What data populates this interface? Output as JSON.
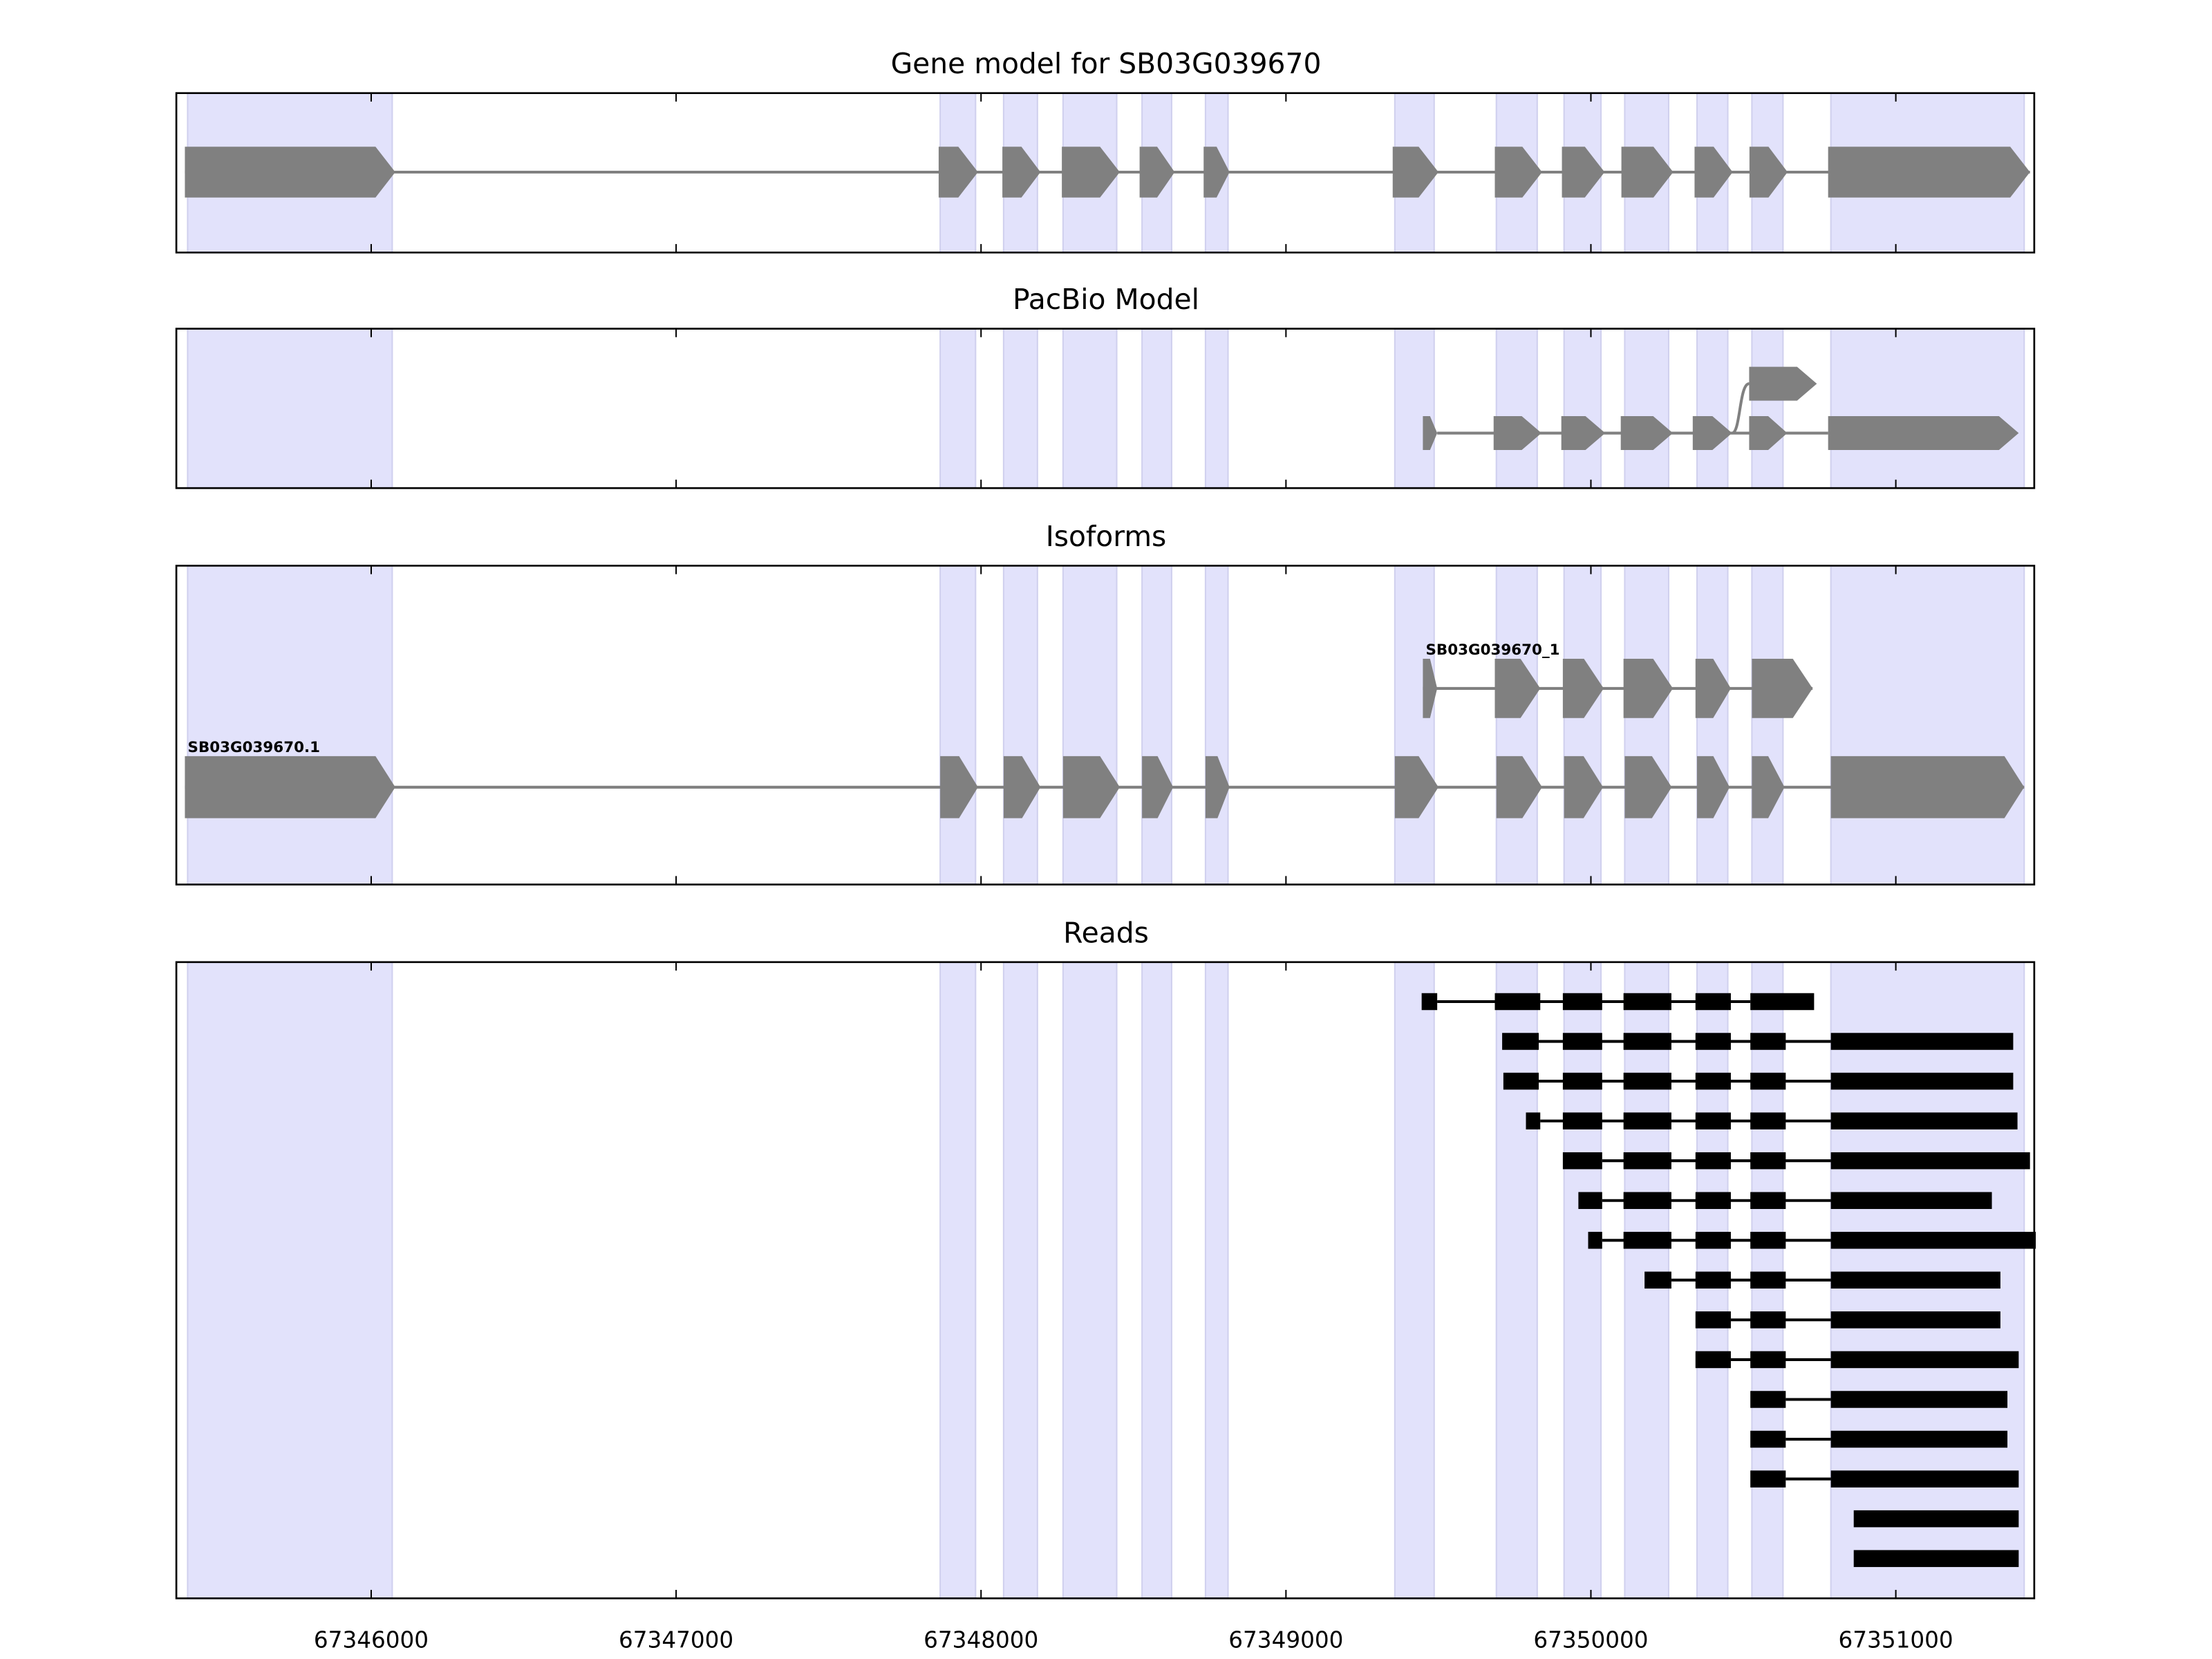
{
  "chart_data": {
    "type": "gene-track",
    "xlim": [
      67345361,
      67351454
    ],
    "x_ticks": [
      67346000,
      67347000,
      67348000,
      67349000,
      67350000,
      67351000
    ],
    "x_tick_labels": [
      "67346000",
      "67347000",
      "67348000",
      "67349000",
      "67350000",
      "67351000"
    ],
    "colors": {
      "shade": "#e2e2fb",
      "shade_edge": "#d0d0ee",
      "exon": "#808080",
      "read": "#000000"
    },
    "shaded_regions": [
      [
        67345398,
        67346069
      ],
      [
        67347866,
        67347982
      ],
      [
        67348074,
        67348185
      ],
      [
        67348269,
        67348445
      ],
      [
        67348528,
        67348625
      ],
      [
        67348736,
        67348810
      ],
      [
        67349357,
        67349486
      ],
      [
        67349690,
        67349824
      ],
      [
        67349912,
        67350033
      ],
      [
        67350111,
        67350255
      ],
      [
        67350348,
        67350449
      ],
      [
        67350528,
        67350630
      ],
      [
        67350787,
        67351421
      ]
    ],
    "gene_model": {
      "title": "Gene model for SB03G039670",
      "exons": [
        [
          67345389,
          67346079
        ],
        [
          67347861,
          67347990
        ],
        [
          67348070,
          67348195
        ],
        [
          67348265,
          67348455
        ],
        [
          67348520,
          67348635
        ],
        [
          67348730,
          67348815
        ],
        [
          67349350,
          67349500
        ],
        [
          67349685,
          67349840
        ],
        [
          67349905,
          67350045
        ],
        [
          67350100,
          67350270
        ],
        [
          67350340,
          67350465
        ],
        [
          67350520,
          67350645
        ],
        [
          67350778,
          67351440
        ]
      ]
    },
    "pacbio": {
      "title": "PacBio Model",
      "main_exons": [
        [
          67349449,
          67349496
        ],
        [
          67349681,
          67349838
        ],
        [
          67349903,
          67350047
        ],
        [
          67350098,
          67350269
        ],
        [
          67350334,
          67350463
        ],
        [
          67350519,
          67350644
        ],
        [
          67350778,
          67351403
        ]
      ],
      "branch_after_exon": 4,
      "branch_exons": [
        [
          67350519,
          67350741
        ]
      ]
    },
    "isoforms": {
      "title": "Isoforms",
      "items": [
        {
          "name": "SB03G039670_1",
          "row": 0,
          "exons": [
            [
              67349449,
              67349496
            ],
            [
              67349685,
              67349834
            ],
            [
              67349908,
              67350042
            ],
            [
              67350107,
              67350269
            ],
            [
              67350343,
              67350459
            ],
            [
              67350528,
              67350727
            ]
          ]
        },
        {
          "name": "SB03G039670.1",
          "row": 1,
          "exons": [
            [
              67345389,
              67346079
            ],
            [
              67347866,
              67347990
            ],
            [
              67348074,
              67348195
            ],
            [
              67348269,
              67348455
            ],
            [
              67348528,
              67348630
            ],
            [
              67348736,
              67348815
            ],
            [
              67349357,
              67349500
            ],
            [
              67349690,
              67349840
            ],
            [
              67349912,
              67350040
            ],
            [
              67350111,
              67350265
            ],
            [
              67350348,
              67350455
            ],
            [
              67350528,
              67350635
            ],
            [
              67350787,
              67351421
            ]
          ]
        }
      ]
    },
    "reads": {
      "title": "Reads",
      "items": [
        [
          [
            67349445,
            67349496
          ],
          [
            67349685,
            67349834
          ],
          [
            67349908,
            67350037
          ],
          [
            67350107,
            67350264
          ],
          [
            67350343,
            67350459
          ],
          [
            67350523,
            67350732
          ]
        ],
        [
          [
            67349709,
            67349829
          ],
          [
            67349908,
            67350037
          ],
          [
            67350107,
            67350264
          ],
          [
            67350343,
            67350459
          ],
          [
            67350523,
            67350639
          ],
          [
            67350787,
            67351385
          ]
        ],
        [
          [
            67349713,
            67349829
          ],
          [
            67349908,
            67350037
          ],
          [
            67350107,
            67350264
          ],
          [
            67350343,
            67350459
          ],
          [
            67350523,
            67350639
          ],
          [
            67350787,
            67351385
          ]
        ],
        [
          [
            67349787,
            67349834
          ],
          [
            67349908,
            67350037
          ],
          [
            67350107,
            67350264
          ],
          [
            67350343,
            67350459
          ],
          [
            67350523,
            67350639
          ],
          [
            67350787,
            67351399
          ]
        ],
        [
          [
            67349908,
            67350037
          ],
          [
            67350107,
            67350264
          ],
          [
            67350343,
            67350459
          ],
          [
            67350523,
            67350639
          ],
          [
            67350787,
            67351440
          ]
        ],
        [
          [
            67349959,
            67350037
          ],
          [
            67350107,
            67350264
          ],
          [
            67350343,
            67350459
          ],
          [
            67350523,
            67350639
          ],
          [
            67350787,
            67351315
          ]
        ],
        [
          [
            67349991,
            67350037
          ],
          [
            67350107,
            67350264
          ],
          [
            67350343,
            67350459
          ],
          [
            67350523,
            67350639
          ],
          [
            67350787,
            67351459
          ]
        ],
        [
          [
            67350176,
            67350264
          ],
          [
            67350343,
            67350459
          ],
          [
            67350523,
            67350639
          ],
          [
            67350787,
            67351343
          ]
        ],
        [
          [
            67350343,
            67350459
          ],
          [
            67350523,
            67350639
          ],
          [
            67350787,
            67351343
          ]
        ],
        [
          [
            67350343,
            67350459
          ],
          [
            67350523,
            67350639
          ],
          [
            67350787,
            67351403
          ]
        ],
        [
          [
            67350523,
            67350639
          ],
          [
            67350787,
            67351366
          ]
        ],
        [
          [
            67350523,
            67350639
          ],
          [
            67350787,
            67351366
          ]
        ],
        [
          [
            67350523,
            67350639
          ],
          [
            67350787,
            67351403
          ]
        ],
        [
          [
            67350862,
            67351403
          ]
        ],
        [
          [
            67350862,
            67351403
          ]
        ]
      ]
    }
  }
}
